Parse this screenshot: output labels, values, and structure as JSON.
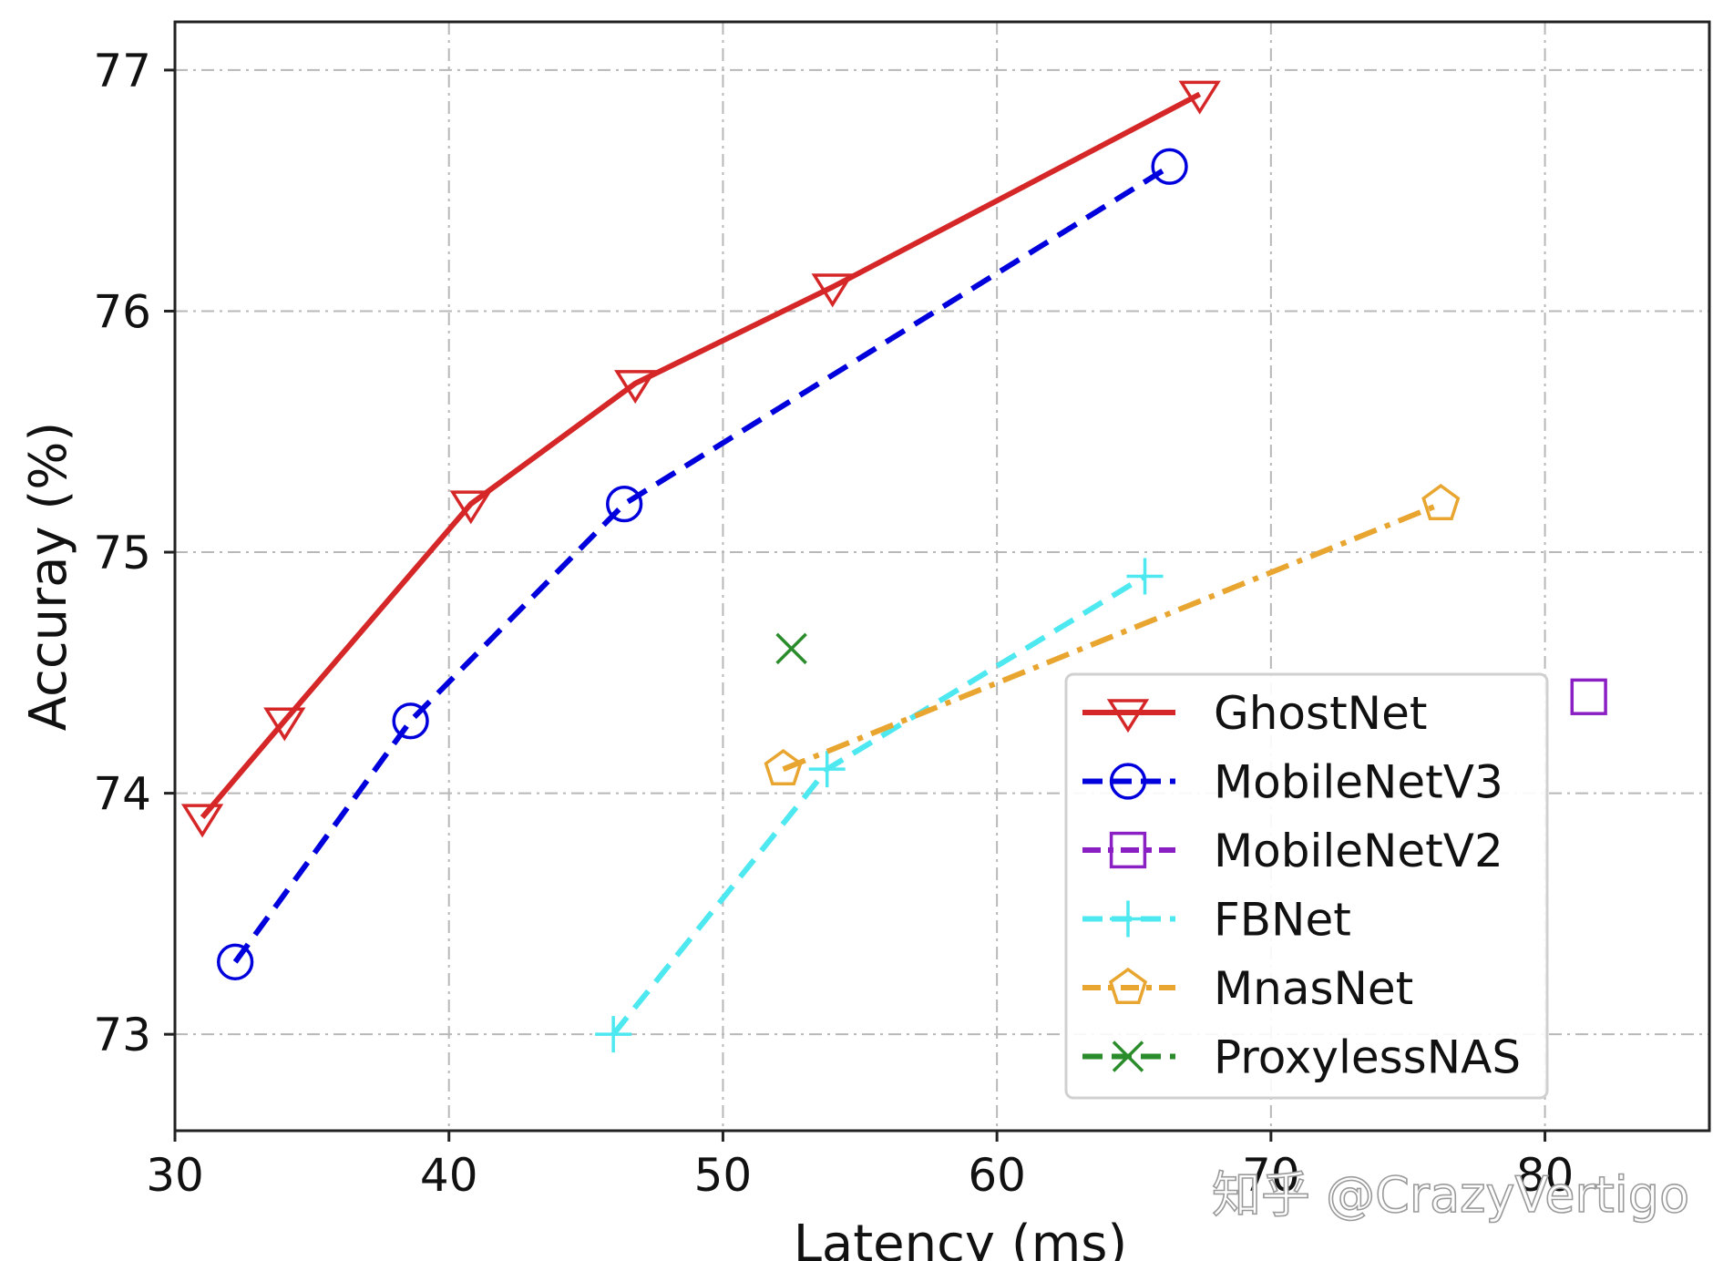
{
  "chart_data": {
    "type": "line",
    "xlabel": "Latency (ms)",
    "ylabel": "Accuray (%)",
    "xlim": [
      30,
      86
    ],
    "ylim": [
      72.6,
      77.2
    ],
    "xticks": [
      30,
      40,
      50,
      60,
      70,
      80
    ],
    "yticks": [
      73,
      74,
      75,
      76,
      77
    ],
    "grid": true,
    "legend_position": "lower-right",
    "series": [
      {
        "name": "GhostNet",
        "color": "#d62728",
        "marker": "triangle-down",
        "line": "solid",
        "x": [
          31.0,
          34.0,
          40.8,
          46.8,
          54.0,
          67.4
        ],
        "y": [
          73.9,
          74.3,
          75.2,
          75.7,
          76.1,
          76.9
        ]
      },
      {
        "name": "MobileNetV3",
        "color": "#0000dd",
        "marker": "circle",
        "line": "dashed",
        "x": [
          32.2,
          38.6,
          46.4,
          66.3
        ],
        "y": [
          73.3,
          74.3,
          75.2,
          76.6
        ]
      },
      {
        "name": "MobileNetV2",
        "color": "#8a1fc4",
        "marker": "square",
        "line": "dashdot",
        "x": [
          81.6
        ],
        "y": [
          74.4
        ]
      },
      {
        "name": "FBNet",
        "color": "#4de8f0",
        "marker": "plus",
        "line": "dashed",
        "x": [
          46.0,
          53.8,
          65.4
        ],
        "y": [
          73.0,
          74.1,
          74.9
        ]
      },
      {
        "name": "MnasNet",
        "color": "#e8a530",
        "marker": "pentagon",
        "line": "dashdot",
        "x": [
          52.2,
          76.2
        ],
        "y": [
          74.1,
          75.2
        ]
      },
      {
        "name": "ProxylessNAS",
        "color": "#2a8c2a",
        "marker": "x",
        "line": "dashed",
        "x": [
          52.5
        ],
        "y": [
          74.6
        ]
      }
    ]
  },
  "watermark": "知乎 @CrazyVertigo"
}
